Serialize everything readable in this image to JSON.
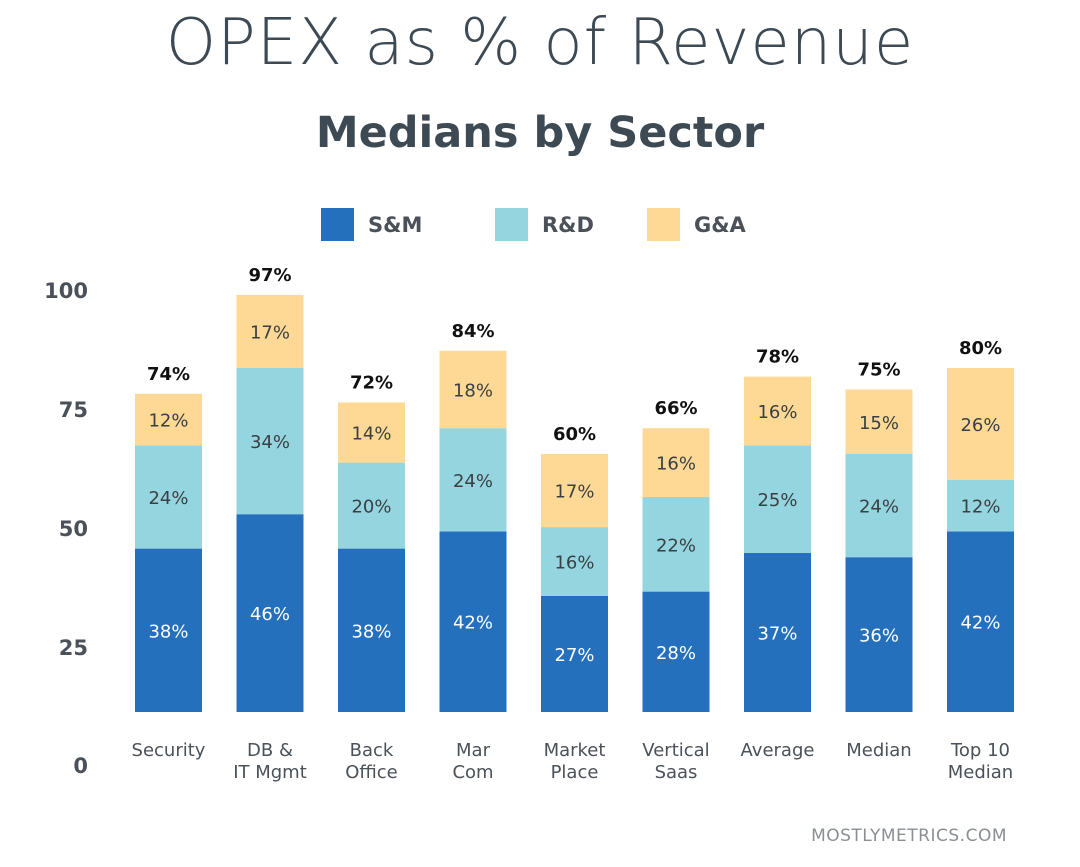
{
  "header": {
    "title": "OPEX as % of Revenue",
    "subtitle": "Medians by Sector"
  },
  "legend": [
    {
      "label": "S&M",
      "color": "#2570bd"
    },
    {
      "label": "R&D",
      "color": "#94d5df"
    },
    {
      "label": "G&A",
      "color": "#fdd995"
    }
  ],
  "watermark": "MOSTLYMETRICS.COM",
  "chart_data": {
    "type": "bar",
    "stacked": true,
    "categories": [
      [
        "Security"
      ],
      [
        "DB &",
        "IT Mgmt"
      ],
      [
        "Back",
        "Office"
      ],
      [
        "Mar",
        "Com"
      ],
      [
        "Market",
        "Place"
      ],
      [
        "Vertical",
        "Saas"
      ],
      [
        "Average"
      ],
      [
        "Median"
      ],
      [
        "Top 10",
        "Median"
      ]
    ],
    "series": [
      {
        "name": "S&M",
        "color": "#2570bd",
        "values": [
          38,
          46,
          38,
          42,
          27,
          28,
          37,
          36,
          42
        ],
        "labels": [
          "38%",
          "46%",
          "38%",
          "42%",
          "27%",
          "28%",
          "37%",
          "36%",
          "42%"
        ]
      },
      {
        "name": "R&D",
        "color": "#94d5df",
        "values": [
          24,
          34,
          20,
          24,
          16,
          22,
          25,
          24,
          12
        ],
        "labels": [
          "24%",
          "34%",
          "20%",
          "24%",
          "16%",
          "22%",
          "25%",
          "24%",
          "12%"
        ]
      },
      {
        "name": "G&A",
        "color": "#fdd995",
        "values": [
          12,
          17,
          14,
          18,
          17,
          16,
          16,
          15,
          26
        ],
        "labels": [
          "12%",
          "17%",
          "14%",
          "18%",
          "17%",
          "16%",
          "16%",
          "15%",
          "26%"
        ]
      }
    ],
    "totals": [
      "74%",
      "97%",
      "72%",
      "84%",
      "60%",
      "66%",
      "78%",
      "75%",
      "80%"
    ],
    "yticks": [
      "0",
      "25",
      "50",
      "75",
      "100"
    ],
    "ylim": [
      0,
      100
    ],
    "grid": false,
    "legend_position": "top"
  }
}
